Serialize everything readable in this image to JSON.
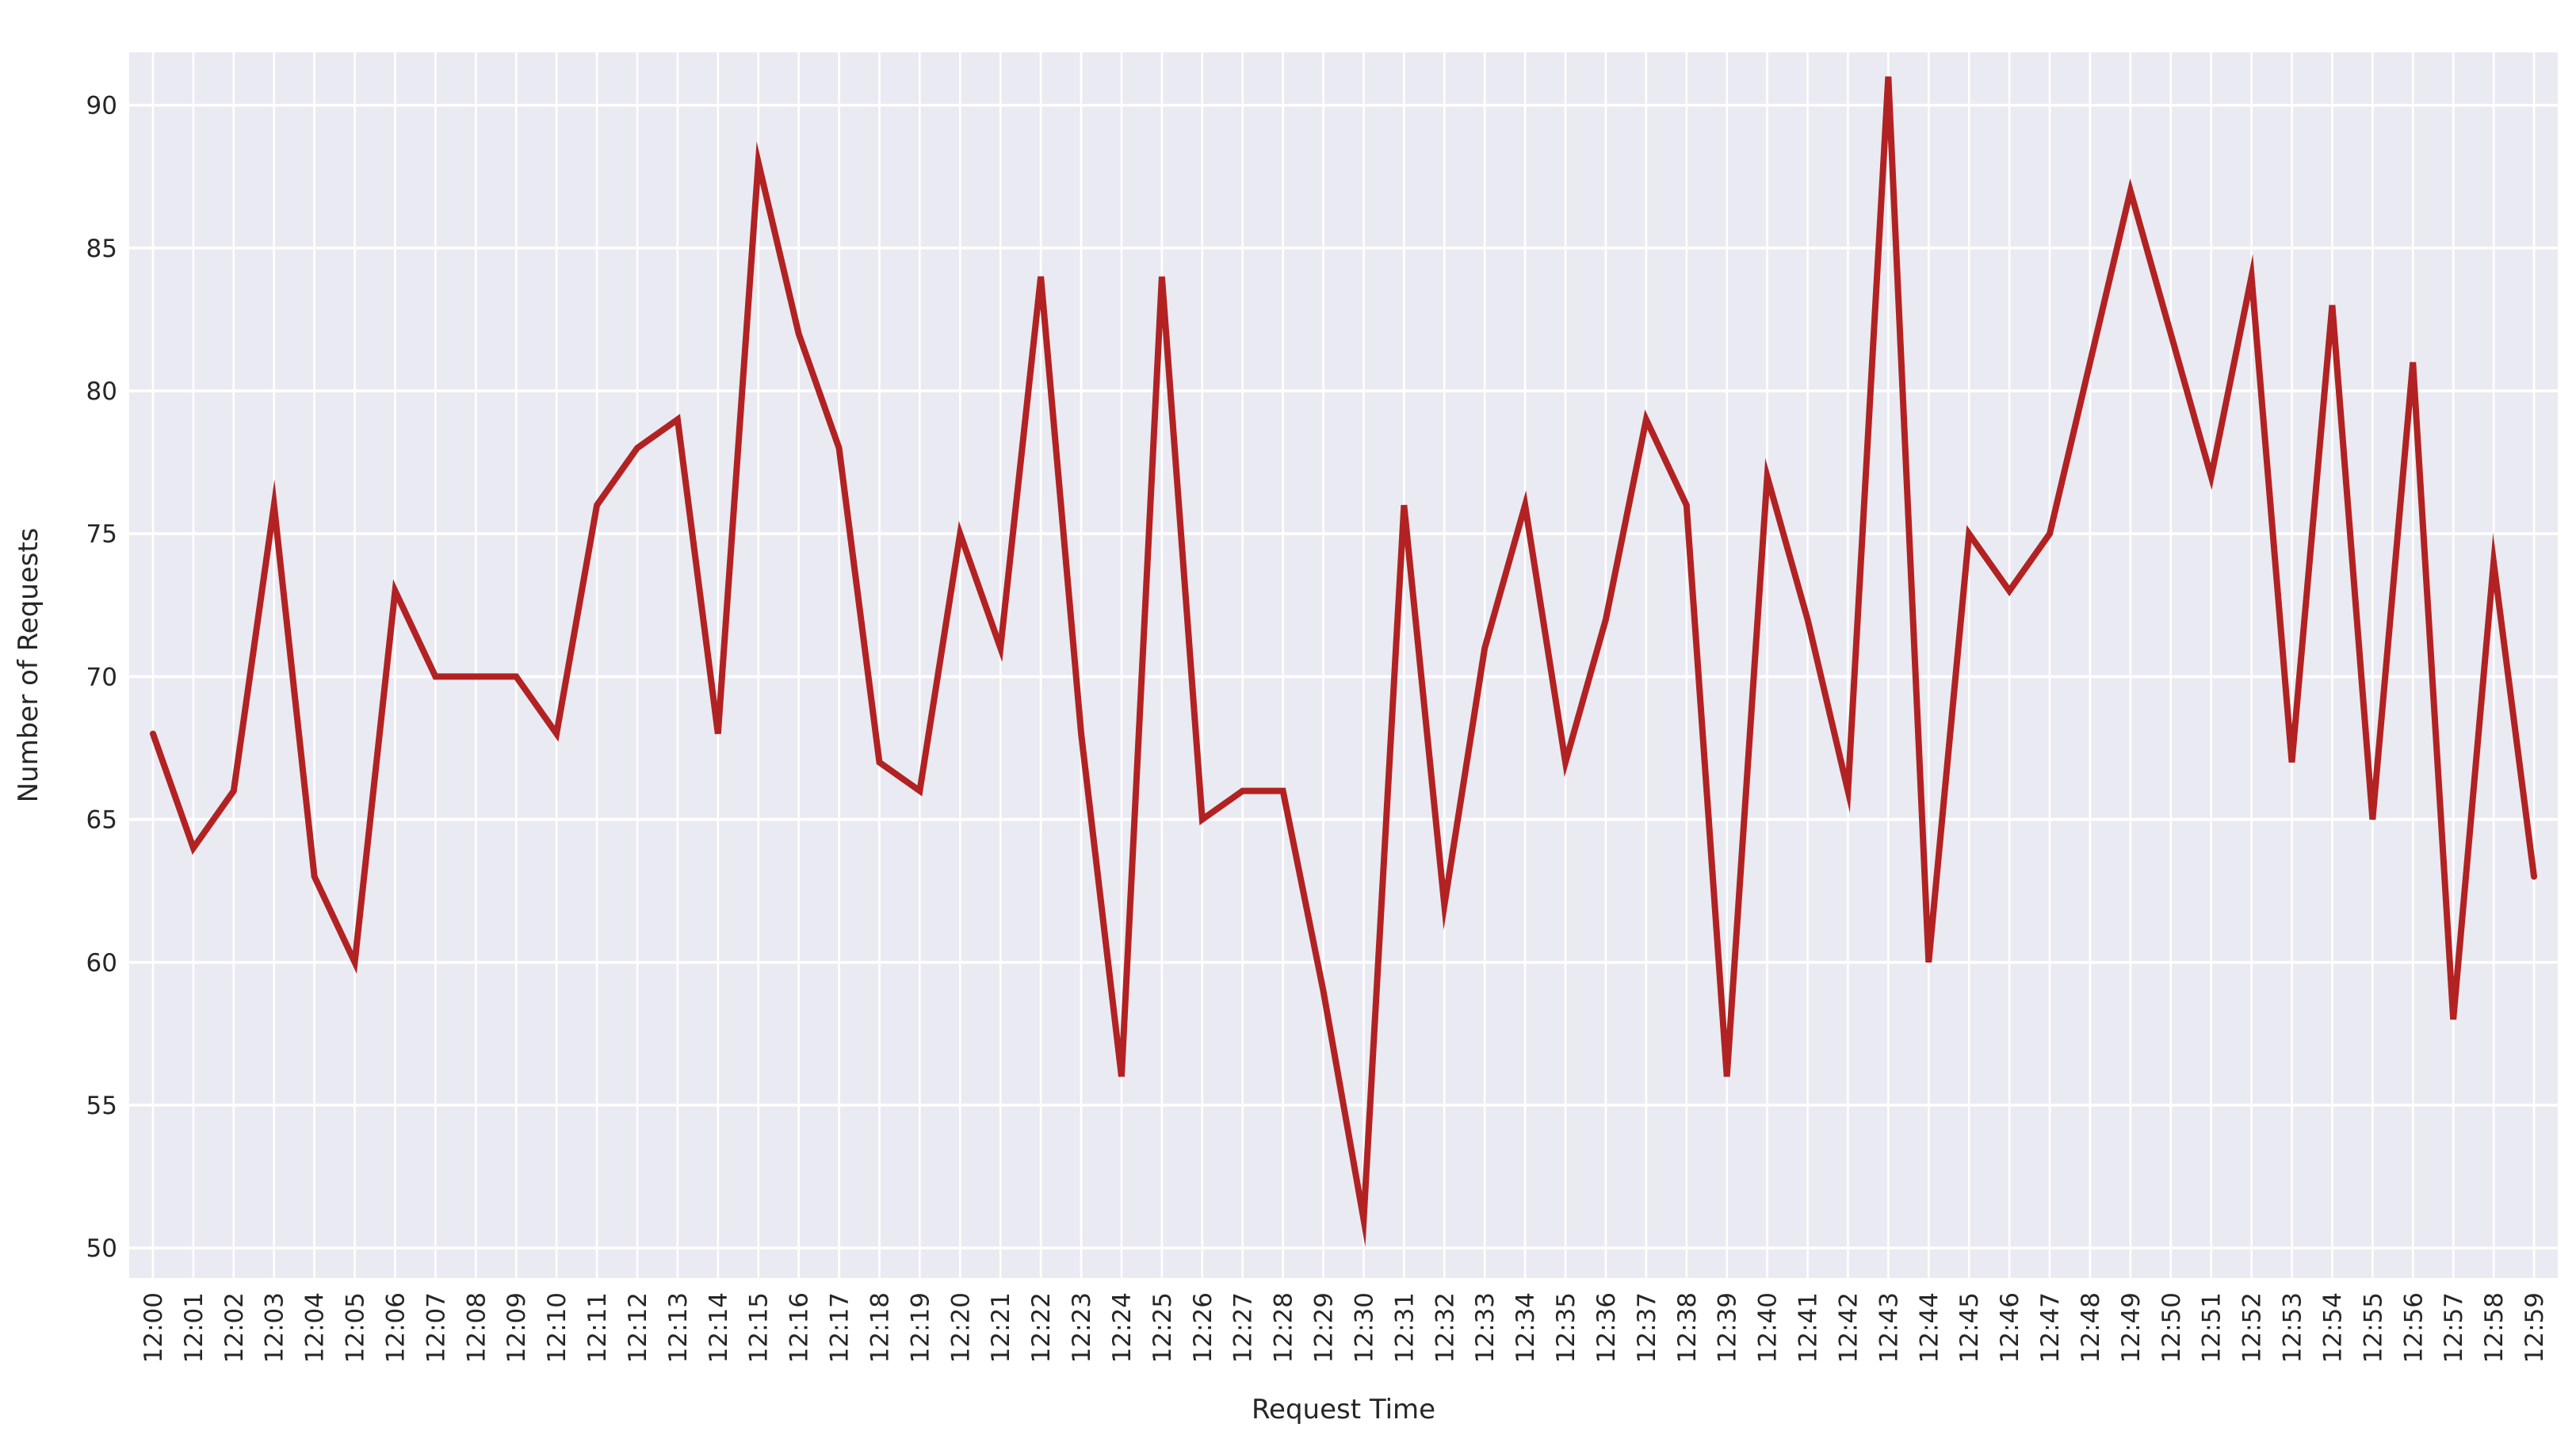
{
  "chart_data": {
    "type": "line",
    "title": "",
    "xlabel": "Request Time",
    "ylabel": "Number of Requests",
    "categories": [
      "12:00",
      "12:01",
      "12:02",
      "12:03",
      "12:04",
      "12:05",
      "12:06",
      "12:07",
      "12:08",
      "12:09",
      "12:10",
      "12:11",
      "12:12",
      "12:13",
      "12:14",
      "12:15",
      "12:16",
      "12:17",
      "12:18",
      "12:19",
      "12:20",
      "12:21",
      "12:22",
      "12:23",
      "12:24",
      "12:25",
      "12:26",
      "12:27",
      "12:28",
      "12:29",
      "12:30",
      "12:31",
      "12:32",
      "12:33",
      "12:34",
      "12:35",
      "12:36",
      "12:37",
      "12:38",
      "12:39",
      "12:40",
      "12:41",
      "12:42",
      "12:43",
      "12:44",
      "12:45",
      "12:46",
      "12:47",
      "12:48",
      "12:49",
      "12:50",
      "12:51",
      "12:52",
      "12:53",
      "12:54",
      "12:55",
      "12:56",
      "12:57",
      "12:58",
      "12:59"
    ],
    "series": [
      {
        "name": "requests",
        "values": [
          68,
          64,
          66,
          76,
          63,
          60,
          73,
          70,
          70,
          70,
          68,
          76,
          78,
          79,
          68,
          88,
          82,
          78,
          67,
          66,
          75,
          71,
          84,
          68,
          56,
          84,
          65,
          66,
          66,
          59,
          51,
          76,
          62,
          71,
          76,
          67,
          72,
          79,
          76,
          56,
          77,
          72,
          66,
          91,
          60,
          75,
          73,
          75,
          81,
          87,
          82,
          77,
          84,
          67,
          83,
          65,
          81,
          58,
          74,
          63
        ]
      }
    ],
    "yticks": [
      50,
      55,
      60,
      65,
      70,
      75,
      80,
      85,
      90
    ],
    "ylim": [
      48.95,
      91.85
    ],
    "grid": true,
    "legend": "none",
    "line_color": "#B22222",
    "plot_bg": "#EAEAF2",
    "grid_color": "#FFFFFF",
    "text_color": "#262626",
    "fig_bg": "#FFFFFF"
  }
}
